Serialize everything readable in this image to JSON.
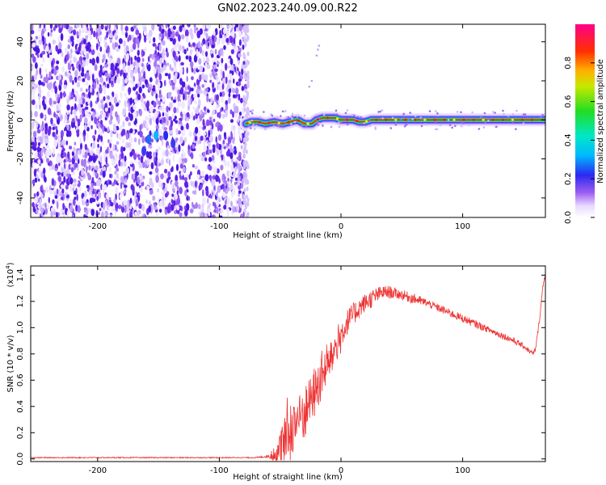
{
  "title": "GN02.2023.240.09.00.R22",
  "colors": {
    "snr_line": "#ee3333",
    "spec_fill": "#7733ee",
    "spec_fill_light": "#d8c8f8"
  },
  "chart_data": [
    {
      "type": "heatmap",
      "name": "spectrogram",
      "xlabel": "Height of straight line (km)",
      "ylabel": "Frequency (Hz)",
      "xlim": [
        -255,
        168
      ],
      "ylim": [
        -50,
        49
      ],
      "xticks": [
        -200,
        -100,
        0,
        100
      ],
      "yticks": [
        -40,
        -20,
        0,
        20,
        40
      ],
      "xtick_labels": [
        "-200",
        "-100",
        "0",
        "100"
      ],
      "ytick_labels": [
        "-40",
        "-20",
        "0",
        "20",
        "40"
      ],
      "noise_region_x": [
        -255,
        -78
      ],
      "signal_track": {
        "x": [
          -78,
          -74,
          -68,
          -62,
          -55,
          -48,
          -42,
          -36,
          -30,
          -24,
          -20,
          -15,
          -10,
          -5,
          0,
          5,
          10,
          15,
          20,
          25,
          30,
          40,
          60,
          80,
          100,
          120,
          140,
          168
        ],
        "freq": [
          -2,
          -1,
          -1,
          -2,
          -1,
          -2,
          -1,
          0,
          -2,
          -2,
          0,
          1,
          1,
          1,
          0,
          0,
          0,
          -1,
          -1,
          0,
          0,
          0,
          0,
          0,
          0,
          0,
          0,
          0
        ]
      },
      "colorbar": {
        "label": "Normalized spectral amplitude",
        "range": [
          0,
          1
        ],
        "ticks": [
          0.0,
          0.2,
          0.4,
          0.6,
          0.8
        ],
        "tick_labels": [
          "0.0",
          "0.2",
          "0.4",
          "0.6",
          "0.8"
        ]
      },
      "grid": false
    },
    {
      "type": "line",
      "name": "snr",
      "xlabel": "Height of straight line (km)",
      "ylabel": "SNR (10 * v/v)",
      "y_exponent_label": "(x10",
      "y_exponent": "4",
      "y_exponent_close": ")",
      "xlim": [
        -255,
        168
      ],
      "ylim": [
        -0.02,
        1.47
      ],
      "xticks": [
        -200,
        -100,
        0,
        100
      ],
      "xtick_labels": [
        "-200",
        "-100",
        "0",
        "100"
      ],
      "yticks": [
        0.0,
        0.2,
        0.4,
        0.6,
        0.8,
        1.0,
        1.2,
        1.4
      ],
      "ytick_labels": [
        "0.0",
        "0.2",
        "0.4",
        "0.6",
        "0.8",
        "1.0",
        "1.2",
        "1.4"
      ],
      "x": [
        -255,
        -200,
        -150,
        -100,
        -70,
        -60,
        -52,
        -48,
        -44,
        -40,
        -35,
        -30,
        -25,
        -20,
        -15,
        -10,
        -5,
        0,
        5,
        10,
        15,
        20,
        25,
        30,
        35,
        40,
        45,
        50,
        60,
        70,
        80,
        90,
        100,
        110,
        120,
        130,
        140,
        150,
        155,
        158,
        160,
        163,
        166,
        168
      ],
      "y": [
        0.01,
        0.01,
        0.01,
        0.01,
        0.01,
        0.02,
        0.05,
        0.15,
        0.25,
        0.32,
        0.36,
        0.42,
        0.5,
        0.58,
        0.68,
        0.78,
        0.86,
        0.95,
        1.04,
        1.1,
        1.15,
        1.19,
        1.22,
        1.25,
        1.27,
        1.27,
        1.26,
        1.25,
        1.22,
        1.19,
        1.15,
        1.11,
        1.07,
        1.03,
        0.99,
        0.95,
        0.91,
        0.86,
        0.82,
        0.8,
        0.84,
        1.05,
        1.32,
        1.42
      ],
      "noise_amplitude": [
        0.004,
        0.004,
        0.004,
        0.004,
        0.004,
        0.01,
        0.1,
        0.2,
        0.25,
        0.22,
        0.22,
        0.2,
        0.18,
        0.18,
        0.18,
        0.15,
        0.13,
        0.12,
        0.1,
        0.09,
        0.08,
        0.07,
        0.07,
        0.06,
        0.05,
        0.05,
        0.04,
        0.04,
        0.04,
        0.03,
        0.03,
        0.03,
        0.03,
        0.03,
        0.025,
        0.025,
        0.025,
        0.02,
        0.02,
        0.02,
        0.02,
        0.02,
        0.02,
        0.02
      ],
      "grid": false
    }
  ]
}
